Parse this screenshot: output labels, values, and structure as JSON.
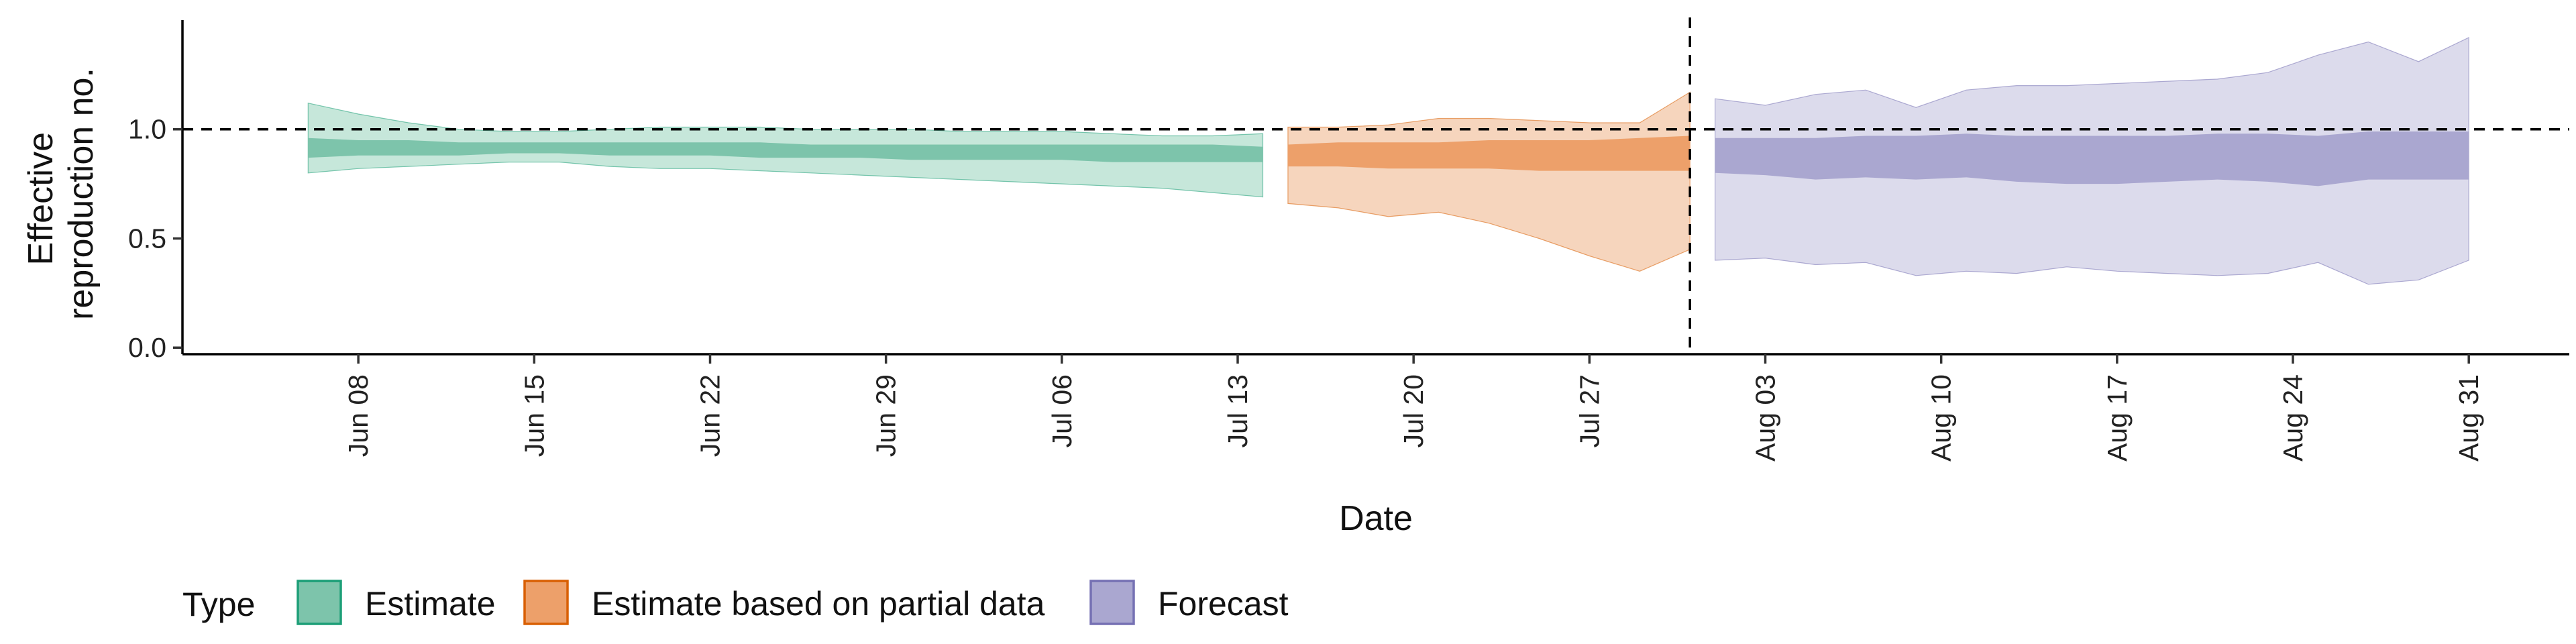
{
  "chart_data": {
    "type": "area",
    "title": "",
    "xlabel": "Date",
    "ylabel_lines": [
      "Effective",
      "reproduction no."
    ],
    "x_ticks": [
      "Jun 08",
      "Jun 15",
      "Jun 22",
      "Jun 29",
      "Jul 06",
      "Jul 13",
      "Jul 20",
      "Jul 27",
      "Aug 03",
      "Aug 10",
      "Aug 17",
      "Aug 24",
      "Aug 31"
    ],
    "y_ticks": [
      "0.0",
      "0.5",
      "1.0"
    ],
    "xlim": [
      "2020-06-01",
      "2020-09-04"
    ],
    "ylim": [
      -0.03,
      1.5
    ],
    "reference_line_y": 1.0,
    "reference_line_date": "2020-07-31",
    "grid": false,
    "legend": {
      "title": "Type",
      "placement": "bottom-left",
      "entries": [
        {
          "label": "Estimate",
          "fill": "#7dc4ab",
          "stroke": "#1b9e77"
        },
        {
          "label": "Estimate based on partial data",
          "fill": "#eda06a",
          "stroke": "#d95f02"
        },
        {
          "label": "Forecast",
          "fill": "#aaa7d0",
          "stroke": "#7570b3"
        }
      ]
    },
    "series": [
      {
        "name": "Estimate",
        "color": "#1b9e77",
        "outer_fill": "#c6e7da",
        "inner_fill": "#7dc4ab",
        "x": [
          "2020-06-06",
          "2020-06-08",
          "2020-06-10",
          "2020-06-12",
          "2020-06-14",
          "2020-06-16",
          "2020-06-18",
          "2020-06-20",
          "2020-06-22",
          "2020-06-24",
          "2020-06-26",
          "2020-06-28",
          "2020-06-30",
          "2020-07-02",
          "2020-07-04",
          "2020-07-06",
          "2020-07-08",
          "2020-07-10",
          "2020-07-12",
          "2020-07-14"
        ],
        "lower_90": [
          0.8,
          0.82,
          0.83,
          0.84,
          0.85,
          0.85,
          0.83,
          0.82,
          0.82,
          0.81,
          0.8,
          0.79,
          0.78,
          0.77,
          0.76,
          0.75,
          0.74,
          0.73,
          0.71,
          0.69
        ],
        "upper_90": [
          1.12,
          1.07,
          1.03,
          1.0,
          0.99,
          0.99,
          1.0,
          1.01,
          1.01,
          1.01,
          1.0,
          1.0,
          1.0,
          0.99,
          0.99,
          0.99,
          0.98,
          0.97,
          0.97,
          0.98
        ],
        "lower_50": [
          0.87,
          0.88,
          0.88,
          0.88,
          0.89,
          0.89,
          0.88,
          0.88,
          0.88,
          0.87,
          0.87,
          0.87,
          0.86,
          0.86,
          0.86,
          0.86,
          0.85,
          0.85,
          0.85,
          0.85
        ],
        "upper_50": [
          0.96,
          0.95,
          0.95,
          0.94,
          0.94,
          0.94,
          0.94,
          0.94,
          0.94,
          0.94,
          0.93,
          0.93,
          0.93,
          0.93,
          0.93,
          0.93,
          0.93,
          0.93,
          0.93,
          0.92
        ]
      },
      {
        "name": "Estimate based on partial data",
        "color": "#d95f02",
        "outer_fill": "#f6d5bd",
        "inner_fill": "#eda06a",
        "x": [
          "2020-07-15",
          "2020-07-17",
          "2020-07-19",
          "2020-07-21",
          "2020-07-23",
          "2020-07-25",
          "2020-07-27",
          "2020-07-29",
          "2020-07-31"
        ],
        "lower_90": [
          0.66,
          0.64,
          0.6,
          0.62,
          0.57,
          0.5,
          0.42,
          0.35,
          0.45
        ],
        "upper_90": [
          1.01,
          1.01,
          1.02,
          1.05,
          1.05,
          1.04,
          1.03,
          1.03,
          1.17
        ],
        "lower_50": [
          0.83,
          0.83,
          0.82,
          0.82,
          0.82,
          0.81,
          0.81,
          0.81,
          0.81
        ],
        "upper_50": [
          0.93,
          0.94,
          0.94,
          0.94,
          0.95,
          0.95,
          0.95,
          0.96,
          0.97
        ]
      },
      {
        "name": "Forecast",
        "color": "#7570b3",
        "outer_fill": "#dcdbec",
        "inner_fill": "#aaa7d0",
        "x": [
          "2020-08-01",
          "2020-08-03",
          "2020-08-05",
          "2020-08-07",
          "2020-08-09",
          "2020-08-11",
          "2020-08-13",
          "2020-08-15",
          "2020-08-17",
          "2020-08-19",
          "2020-08-21",
          "2020-08-23",
          "2020-08-25",
          "2020-08-27",
          "2020-08-29",
          "2020-08-31"
        ],
        "lower_90": [
          0.4,
          0.41,
          0.38,
          0.39,
          0.33,
          0.35,
          0.34,
          0.37,
          0.35,
          0.34,
          0.33,
          0.34,
          0.39,
          0.29,
          0.31,
          0.4
        ],
        "upper_90": [
          1.14,
          1.11,
          1.16,
          1.18,
          1.1,
          1.18,
          1.2,
          1.2,
          1.21,
          1.22,
          1.23,
          1.26,
          1.34,
          1.4,
          1.31,
          1.42
        ],
        "lower_50": [
          0.8,
          0.79,
          0.77,
          0.78,
          0.77,
          0.78,
          0.76,
          0.75,
          0.75,
          0.76,
          0.77,
          0.76,
          0.74,
          0.77,
          0.77,
          0.77
        ],
        "upper_50": [
          0.96,
          0.96,
          0.96,
          0.97,
          0.97,
          0.98,
          0.97,
          0.97,
          0.97,
          0.97,
          0.98,
          0.98,
          0.97,
          0.99,
          0.99,
          0.99
        ]
      }
    ]
  }
}
